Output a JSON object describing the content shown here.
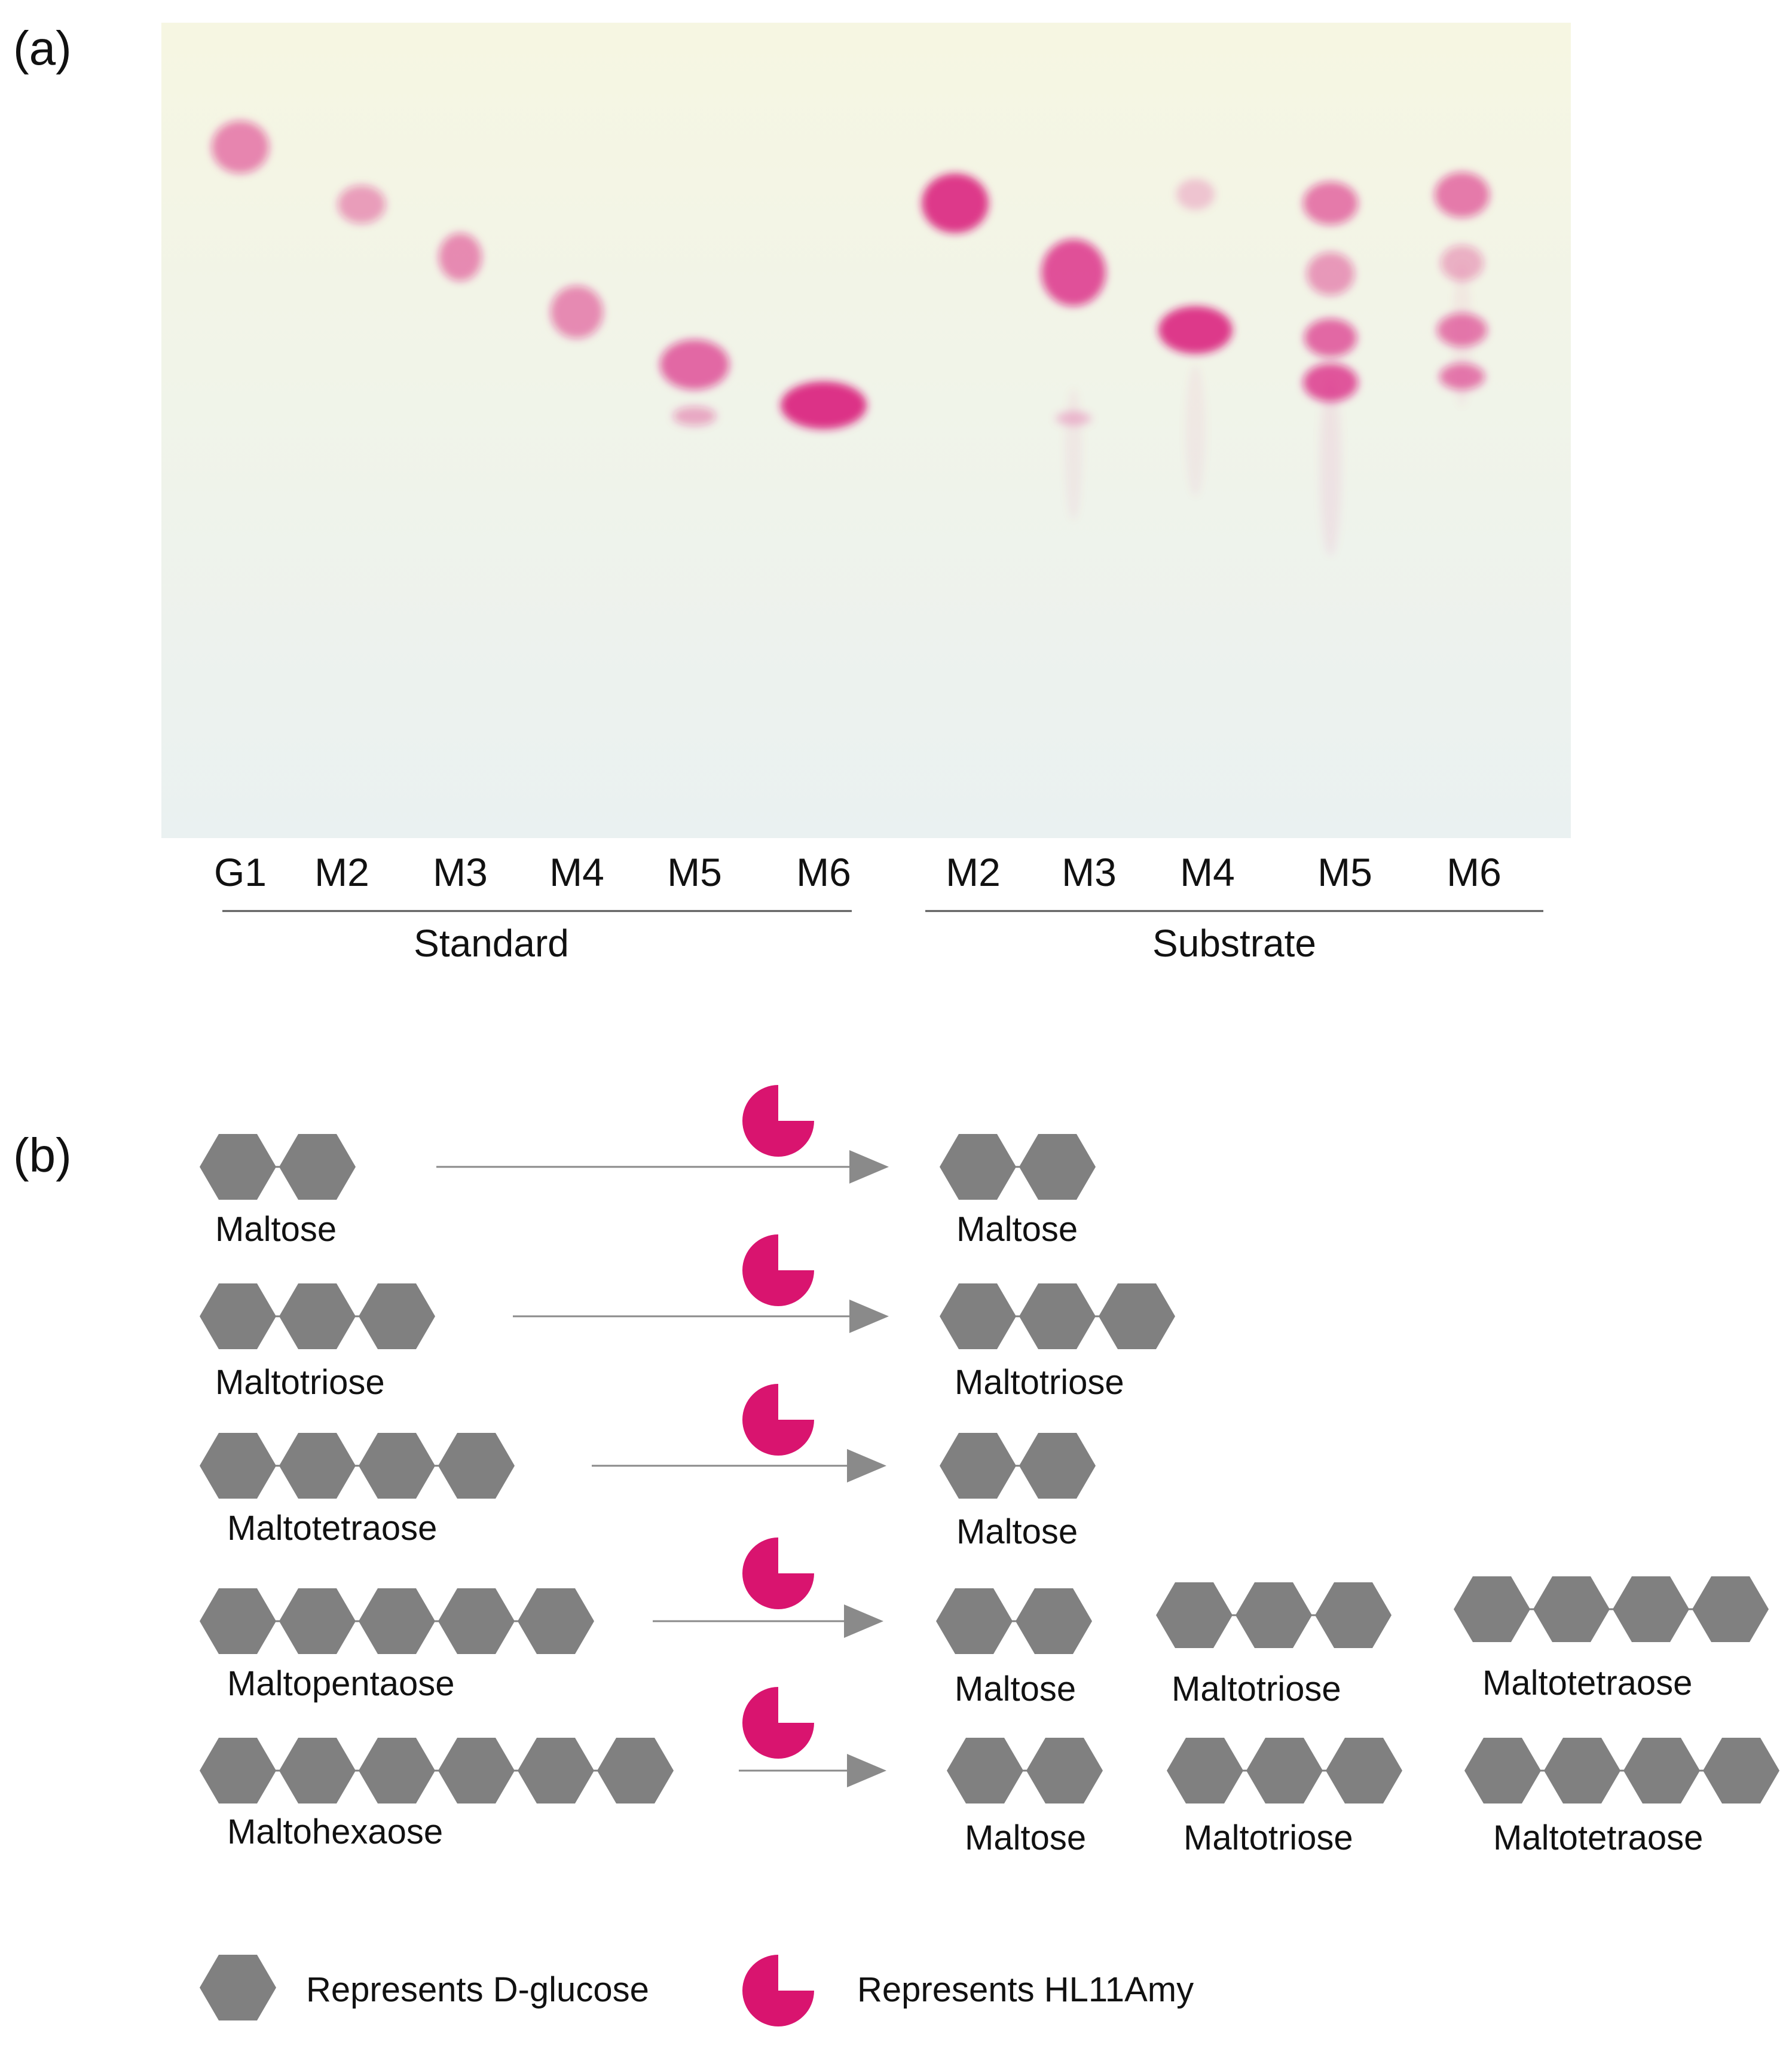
{
  "panel_a": {
    "panel_label": "(a)",
    "lanes": [
      "G1",
      "M2",
      "M3",
      "M4",
      "M5",
      "M6",
      "M2",
      "M3",
      "M4",
      "M5",
      "M6"
    ],
    "groups": [
      {
        "label": "Standard",
        "lane_range": [
          0,
          5
        ]
      },
      {
        "label": "Substrate",
        "lane_range": [
          6,
          10
        ]
      }
    ],
    "spot_color": "#d9147a",
    "plate_colors": {
      "top": "#f6f6e2",
      "bottom": "#eaf1f1"
    }
  },
  "panel_b": {
    "panel_label": "(b)",
    "reactions": [
      {
        "substrate": {
          "name": "Maltose",
          "units": 2
        },
        "products": [
          {
            "name": "Maltose",
            "units": 2
          }
        ]
      },
      {
        "substrate": {
          "name": "Maltotriose",
          "units": 3
        },
        "products": [
          {
            "name": "Maltotriose",
            "units": 3
          }
        ]
      },
      {
        "substrate": {
          "name": "Maltotetraose",
          "units": 4
        },
        "products": [
          {
            "name": "Maltose",
            "units": 2
          }
        ]
      },
      {
        "substrate": {
          "name": "Maltopentaose",
          "units": 5
        },
        "products": [
          {
            "name": "Maltose",
            "units": 2
          },
          {
            "name": "Maltotriose",
            "units": 3
          },
          {
            "name": "Maltotetraose",
            "units": 4
          }
        ]
      },
      {
        "substrate": {
          "name": "Maltohexaose",
          "units": 6
        },
        "products": [
          {
            "name": "Maltose",
            "units": 2
          },
          {
            "name": "Maltotriose",
            "units": 3
          },
          {
            "name": "Maltotetraose",
            "units": 4
          }
        ]
      }
    ],
    "legend": {
      "glucose": "Represents D-glucose",
      "enzyme": "Represents HL11Amy"
    },
    "colors": {
      "glucose": "#808080",
      "enzyme": "#d9146f",
      "arrow": "#8a8a8a"
    }
  }
}
